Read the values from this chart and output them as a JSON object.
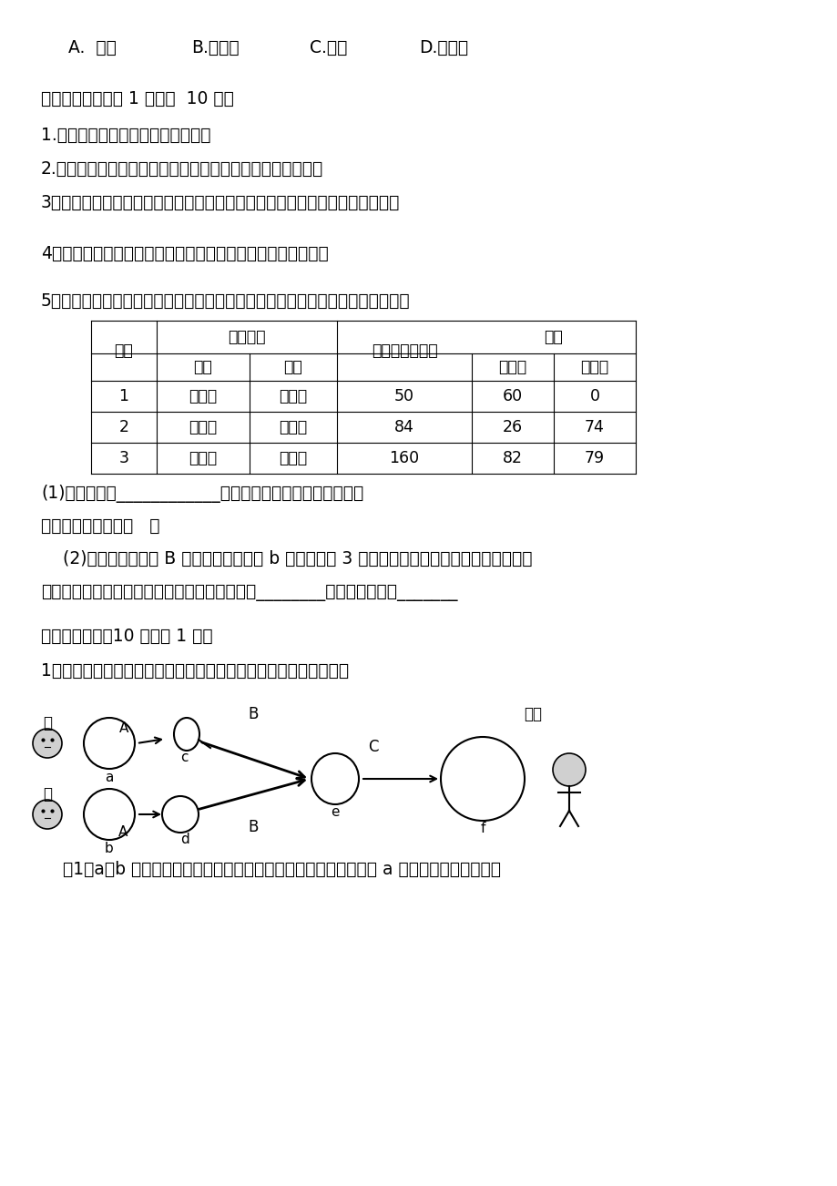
{
  "bg_color": "#ffffff",
  "text_color": "#000000",
  "line1_parts": [
    "A.  牛顿",
    "B.达尔文",
    "C.米勒",
    "D.袁隆平"
  ],
  "line1_x": [
    75,
    210,
    340,
    460
  ],
  "section2_title": "二、填空题（每空 1 分，共  10 分）",
  "q1": "1.生物体的各种性状都是由控制的。",
  "q2": "2.在研究生物的进化过程中，是非常重要也是最直接的证据。",
  "q3": "3、由两性生殖细胞结合成受精卵，在由受精卵发育成新个体的生殖方式叫做。",
  "q4": "4、引起变异的原因首先决定于基础的不同，其次与也有关系。",
  "q5_intro": "5．某班同学对人群中双眼皮和单眼皮的遗传情况进行抽样调查，得到以下数据：",
  "table_data": [
    [
      "1",
      "单眼皮",
      "单眼皮",
      "50",
      "60",
      "0"
    ],
    [
      "2",
      "双眼皮",
      "双眼皮",
      "84",
      "26",
      "74"
    ],
    [
      "3",
      "双眼皮",
      "单眼皮",
      "160",
      "82",
      "79"
    ]
  ],
  "q5_a": "(1)根据表中第____________组数据可以推测单眼皮为性状。",
  "q5_b": "单眼皮和双眼皮互称   。",
  "q5_c": "    (2)如果显性基因用 B 表示，隐性基因用 b 表示，若第 3 组中父亲为双眼皮，母亲为单眼皮，生",
  "q5_d": "了一个单眼皮的孩子，请写出父亲的基因组成：________孩子的基因组成_______",
  "section3_title": "三、看图答题（10 分每空 1 分）",
  "q6_intro": "1．下图表示人的生殖发育过程及染色体数目的变化，请据图回答：",
  "q6_bottom": "    （1）a、b 分别表示父母的体细胞，他们的染色体数均为条，其中 a 细胞中性染色体组成为"
}
